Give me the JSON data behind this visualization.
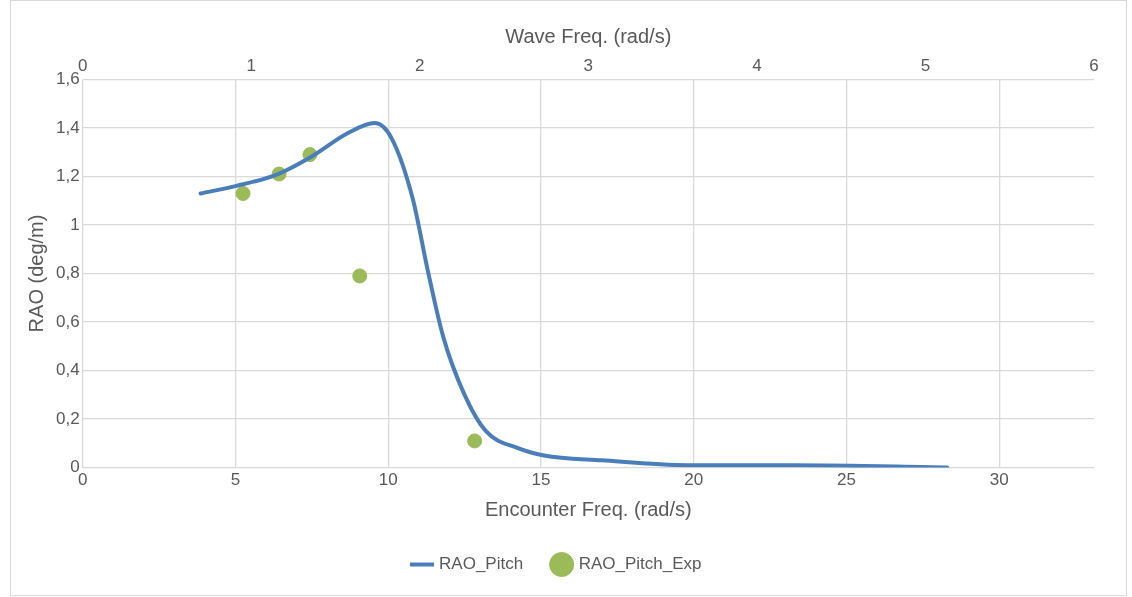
{
  "chart_data": {
    "type": "line",
    "xlabel": "Encounter Freq. (rad/s)",
    "x2label": "Wave Freq. (rad/s)",
    "ylabel": "RAO (deg/m)",
    "xlim": [
      0,
      33.1
    ],
    "xticks": [
      0,
      5,
      10,
      15,
      20,
      25,
      30
    ],
    "x2lim": [
      0,
      6
    ],
    "x2ticks": [
      0,
      1,
      2,
      3,
      4,
      5,
      6
    ],
    "ylim": [
      0,
      1.6
    ],
    "yticks": [
      {
        "value": 0,
        "label": "0"
      },
      {
        "value": 0.2,
        "label": "0,2"
      },
      {
        "value": 0.4,
        "label": "0,4"
      },
      {
        "value": 0.6,
        "label": "0,6"
      },
      {
        "value": 0.8,
        "label": "0,8"
      },
      {
        "value": 1,
        "label": "1"
      },
      {
        "value": 1.2,
        "label": "1,2"
      },
      {
        "value": 1.4,
        "label": "1,4"
      },
      {
        "value": 1.6,
        "label": "1,6"
      }
    ],
    "grid": true,
    "legend": "bottom",
    "series": [
      {
        "name": "RAO_Pitch",
        "color": "#4a7ebb",
        "marker": "none",
        "x": [
          3.86,
          5,
          6.4,
          7.47,
          8.7,
          9.56,
          10.1,
          10.8,
          11.3,
          11.8,
          12.5,
          13.2,
          14.25,
          15.1,
          17,
          19.8,
          23.3,
          28.3
        ],
        "values": [
          1.13,
          1.16,
          1.21,
          1.28,
          1.38,
          1.42,
          1.36,
          1.11,
          0.81,
          0.54,
          0.3,
          0.15,
          0.08,
          0.05,
          0.03,
          0.01,
          0.01,
          0
        ]
      },
      {
        "name": "RAO_Pitch_Exp",
        "type": "scatter",
        "color": "#9bbb59",
        "marker": "circle",
        "x": [
          5.25,
          6.43,
          7.44,
          9.07,
          12.83
        ],
        "values": [
          1.13,
          1.21,
          1.29,
          0.79,
          0.11
        ]
      }
    ]
  }
}
